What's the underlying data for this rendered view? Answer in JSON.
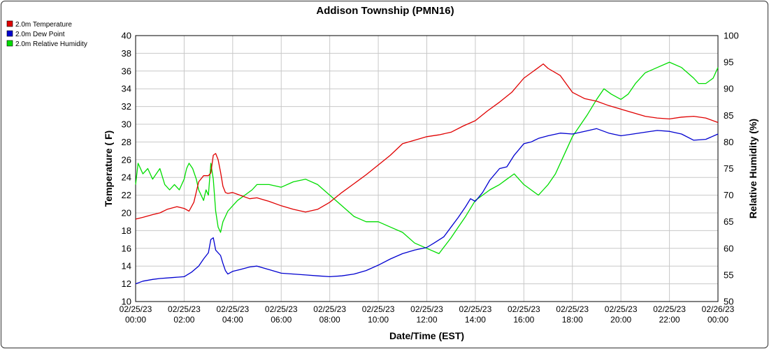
{
  "chart_data": {
    "type": "line",
    "title": "Addison Township (PMN16)",
    "xlabel": "Date/Time (EST)",
    "ylabel_left": "Temperature ( F)",
    "ylabel_right": "Relative Humidity (%)",
    "ylim_left": [
      10,
      40
    ],
    "ylim_right": [
      50,
      100
    ],
    "yticks_left": [
      "10",
      "12",
      "14",
      "16",
      "18",
      "20",
      "22",
      "24",
      "26",
      "28",
      "30",
      "32",
      "34",
      "36",
      "38",
      "40"
    ],
    "yticks_right": [
      "50",
      "55",
      "60",
      "65",
      "70",
      "75",
      "80",
      "85",
      "90",
      "95",
      "100"
    ],
    "xlim_hours": [
      0,
      24
    ],
    "xticks": [
      {
        "date": "02/25/23",
        "time": "00:00"
      },
      {
        "date": "02/25/23",
        "time": "02:00"
      },
      {
        "date": "02/25/23",
        "time": "04:00"
      },
      {
        "date": "02/25/23",
        "time": "06:00"
      },
      {
        "date": "02/25/23",
        "time": "08:00"
      },
      {
        "date": "02/25/23",
        "time": "10:00"
      },
      {
        "date": "02/25/23",
        "time": "12:00"
      },
      {
        "date": "02/25/23",
        "time": "14:00"
      },
      {
        "date": "02/25/23",
        "time": "16:00"
      },
      {
        "date": "02/25/23",
        "time": "18:00"
      },
      {
        "date": "02/25/23",
        "time": "20:00"
      },
      {
        "date": "02/25/23",
        "time": "22:00"
      },
      {
        "date": "02/26/23",
        "time": "00:00"
      }
    ],
    "grid": true,
    "legend_position": "top-left",
    "series": [
      {
        "name": "2.0m Temperature",
        "color": "#e00000",
        "axis": "left",
        "x": [
          0,
          0.3,
          0.7,
          1,
          1.3,
          1.7,
          2,
          2.2,
          2.4,
          2.6,
          2.8,
          3,
          3.1,
          3.2,
          3.3,
          3.4,
          3.5,
          3.6,
          3.7,
          3.8,
          4,
          4.3,
          4.7,
          5,
          5.5,
          6,
          6.5,
          7,
          7.5,
          8,
          8.5,
          9,
          9.5,
          10,
          10.5,
          11,
          11.5,
          12,
          12.5,
          13,
          13.5,
          14,
          14.5,
          15,
          15.5,
          16,
          16.5,
          16.8,
          17,
          17.5,
          18,
          18.5,
          19,
          19.5,
          20,
          20.5,
          21,
          21.5,
          22,
          22.5,
          23,
          23.5,
          24
        ],
        "values": [
          19.3,
          19.5,
          19.8,
          20.0,
          20.4,
          20.7,
          20.5,
          20.2,
          21.2,
          23.5,
          24.2,
          24.2,
          24.5,
          26.5,
          26.7,
          26.0,
          24.6,
          23.0,
          22.3,
          22.2,
          22.3,
          22.0,
          21.6,
          21.7,
          21.3,
          20.8,
          20.4,
          20.1,
          20.4,
          21.2,
          22.3,
          23.3,
          24.3,
          25.4,
          26.5,
          27.8,
          28.2,
          28.6,
          28.8,
          29.1,
          29.8,
          30.4,
          31.5,
          32.5,
          33.6,
          35.2,
          36.2,
          36.8,
          36.3,
          35.5,
          33.6,
          32.9,
          32.6,
          32.1,
          31.7,
          31.3,
          30.9,
          30.7,
          30.6,
          30.8,
          30.9,
          30.7,
          30.2
        ]
      },
      {
        "name": "2.0m Dew Point",
        "color": "#0000d0",
        "axis": "left",
        "x": [
          0,
          0.3,
          0.7,
          1,
          1.5,
          2,
          2.3,
          2.6,
          2.8,
          3,
          3.1,
          3.2,
          3.3,
          3.5,
          3.6,
          3.7,
          3.8,
          4,
          4.3,
          4.7,
          5,
          5.5,
          6,
          6.5,
          7,
          7.5,
          8,
          8.5,
          9,
          9.5,
          10,
          10.5,
          11,
          11.5,
          12,
          12.3,
          12.7,
          13,
          13.3,
          13.6,
          13.8,
          14,
          14.3,
          14.6,
          15,
          15.3,
          15.6,
          16,
          16.3,
          16.6,
          17,
          17.5,
          18,
          18.5,
          19,
          19.5,
          20,
          20.5,
          21,
          21.5,
          22,
          22.5,
          23,
          23.5,
          24
        ],
        "values": [
          12.0,
          12.3,
          12.5,
          12.6,
          12.7,
          12.8,
          13.3,
          14.0,
          14.8,
          15.5,
          17.0,
          17.2,
          15.8,
          15.2,
          14.3,
          13.5,
          13.1,
          13.4,
          13.6,
          13.9,
          14.0,
          13.6,
          13.2,
          13.1,
          13.0,
          12.9,
          12.8,
          12.9,
          13.1,
          13.5,
          14.1,
          14.8,
          15.4,
          15.8,
          16.1,
          16.6,
          17.3,
          18.4,
          19.5,
          20.7,
          21.6,
          21.3,
          22.3,
          23.7,
          25.0,
          25.2,
          26.5,
          27.8,
          28.0,
          28.4,
          28.7,
          29.0,
          28.9,
          29.2,
          29.5,
          29.0,
          28.7,
          28.9,
          29.1,
          29.3,
          29.2,
          28.9,
          28.2,
          28.3,
          28.9
        ]
      },
      {
        "name": "2.0m Relative Humidity",
        "color": "#00dd00",
        "axis": "right",
        "x": [
          0,
          0.1,
          0.3,
          0.5,
          0.7,
          1,
          1.2,
          1.4,
          1.6,
          1.8,
          2,
          2.1,
          2.2,
          2.35,
          2.5,
          2.6,
          2.7,
          2.8,
          2.9,
          3,
          3.1,
          3.2,
          3.3,
          3.4,
          3.5,
          3.6,
          3.7,
          3.8,
          4,
          4.2,
          4.5,
          4.8,
          5,
          5.5,
          6,
          6.5,
          7,
          7.5,
          8,
          8.5,
          9,
          9.5,
          10,
          10.5,
          11,
          11.5,
          12,
          12.5,
          13,
          13.3,
          13.6,
          14,
          14.3,
          14.6,
          15,
          15.3,
          15.6,
          16,
          16.3,
          16.6,
          16.8,
          17,
          17.3,
          17.6,
          18,
          18.3,
          18.6,
          19,
          19.3,
          19.6,
          20,
          20.3,
          20.6,
          21,
          21.5,
          22,
          22.5,
          23,
          23.2,
          23.5,
          23.8,
          24
        ],
        "values": [
          72,
          76,
          74,
          75,
          73,
          75,
          72,
          71,
          72,
          71,
          73,
          75,
          76,
          75,
          73,
          71,
          70,
          69,
          71,
          70,
          76,
          73,
          67,
          64,
          63,
          65,
          66,
          67,
          68,
          69,
          70,
          71,
          72,
          72,
          71.5,
          72.5,
          73,
          72,
          70,
          68,
          66,
          65,
          65,
          64,
          63,
          61,
          60,
          59,
          62,
          64,
          66,
          69,
          70,
          71,
          72,
          73,
          74,
          72,
          71,
          70,
          71,
          72,
          74,
          77,
          81,
          83,
          85,
          88,
          90,
          89,
          88,
          89,
          91,
          93,
          94,
          95,
          94,
          92,
          91,
          91,
          92,
          94
        ]
      }
    ]
  }
}
